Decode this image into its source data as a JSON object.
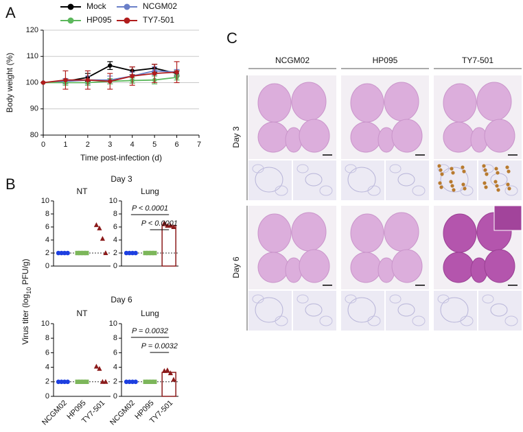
{
  "chart_data": [
    {
      "panel": "A",
      "type": "line",
      "x_label": "Time post-infection (d)",
      "y_label": "Body weight (%)",
      "x": [
        0,
        1,
        2,
        3,
        4,
        5,
        6
      ],
      "xlim": [
        0,
        7
      ],
      "xticks": [
        0,
        1,
        2,
        3,
        4,
        5,
        6,
        7
      ],
      "ylim": [
        80,
        120
      ],
      "yticks": [
        80,
        90,
        100,
        110,
        120
      ],
      "grid": true,
      "series": [
        {
          "name": "Mock",
          "color": "#000000",
          "values": [
            100,
            100.5,
            102,
            106.5,
            104.5,
            105.5,
            103.5
          ],
          "errors": [
            0,
            1,
            1.5,
            1.5,
            1.5,
            1.5,
            1
          ]
        },
        {
          "name": "NCGM02",
          "color": "#6a7fc8",
          "values": [
            100,
            100.5,
            101,
            101,
            102.5,
            104.5,
            104
          ],
          "errors": [
            0,
            1,
            1.5,
            1.5,
            1.5,
            1.5,
            1
          ]
        },
        {
          "name": "HP095",
          "color": "#5cb85c",
          "values": [
            100,
            100,
            100,
            100.5,
            100.8,
            101,
            102
          ],
          "errors": [
            0,
            1,
            1,
            1,
            1,
            1.5,
            1
          ]
        },
        {
          "name": "TY7-501",
          "color": "#b01c1c",
          "values": [
            100,
            101,
            101,
            100.5,
            102.5,
            103.5,
            104
          ],
          "errors": [
            0,
            3.5,
            3.5,
            3,
            3.5,
            3.5,
            4
          ]
        }
      ]
    },
    {
      "panel": "B",
      "type": "strip",
      "y_label": [
        "Virus titer (log",
        "10",
        " PFU/g)"
      ],
      "categories": [
        "NCGM02",
        "HP095",
        "TY7-501"
      ],
      "colors": [
        "#1d3fe0",
        "#7cb65a",
        "#8b1a1a"
      ],
      "markers": [
        "circle",
        "square",
        "triangle"
      ],
      "ylim": [
        0,
        10
      ],
      "yticks": [
        0,
        2,
        4,
        6,
        8,
        10
      ],
      "threshold": 2,
      "rows": [
        {
          "title": "Day 3",
          "panels": [
            {
              "title": "NT",
              "values": [
                [
                  2,
                  2,
                  2,
                  2
                ],
                [
                  2,
                  2,
                  2,
                  2
                ],
                [
                  6.3,
                  5.8,
                  4.2,
                  2.0
                ]
              ]
            },
            {
              "title": "Lung",
              "values": [
                [
                  2,
                  2,
                  2,
                  2
                ],
                [
                  2,
                  2,
                  2,
                  2
                ],
                [
                  6.6,
                  6.2,
                  6.2,
                  6.0
                ]
              ],
              "mean_bar": 6.2,
              "comparisons": [
                "P < 0.0001",
                "P < 0.0001"
              ]
            }
          ]
        },
        {
          "title": "Day 6",
          "panels": [
            {
              "title": "NT",
              "values": [
                [
                  2,
                  2,
                  2,
                  2
                ],
                [
                  2,
                  2,
                  2,
                  2
                ],
                [
                  4.1,
                  3.8,
                  2.0,
                  2.0
                ]
              ]
            },
            {
              "title": "Lung",
              "values": [
                [
                  2,
                  2,
                  2,
                  2
                ],
                [
                  2,
                  2,
                  2,
                  2
                ],
                [
                  3.5,
                  3.6,
                  3.2,
                  2.3
                ]
              ],
              "mean_bar": 3.3,
              "comparisons": [
                "P = 0.0032",
                "P = 0.0032"
              ]
            }
          ]
        }
      ]
    }
  ],
  "panel_c": {
    "panel": "C",
    "columns": [
      "NCGM02",
      "HP095",
      "TY7-501"
    ],
    "rows": [
      "Day 3",
      "Day 6"
    ]
  }
}
